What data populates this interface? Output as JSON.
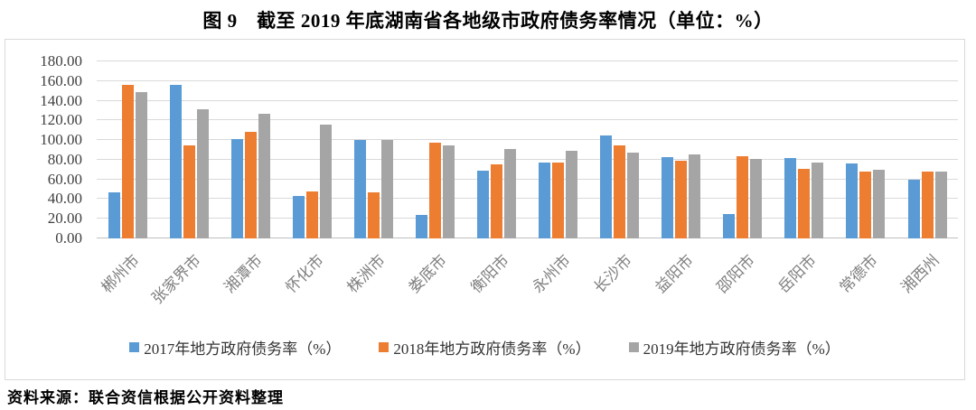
{
  "header": {
    "title": "图 9　截至 2019 年底湖南省各地级市政府债务率情况（单位：%）"
  },
  "footer": {
    "source": "资料来源：联合资信根据公开资料整理"
  },
  "colors": {
    "series_2017": "#5B9BD5",
    "series_2018": "#ED7D31",
    "series_2019": "#A5A5A5",
    "gridline": "#D9D9D9",
    "axis_line": "#BFBFBF",
    "chart_border": "#D9D9D9",
    "x_label": "#7F7F7F",
    "y_label": "#404040"
  },
  "chart_data": {
    "type": "bar",
    "title": "图 9 截至 2019 年底湖南省各地级市政府债务率情况（单位：%）",
    "categories": [
      "郴州市",
      "张家界市",
      "湘潭市",
      "怀化市",
      "株洲市",
      "娄底市",
      "衡阳市",
      "永州市",
      "长沙市",
      "益阳市",
      "邵阳市",
      "岳阳市",
      "常德市",
      "湘西州"
    ],
    "series": [
      {
        "name": "2017年地方政府债务率（%）",
        "color": "#5B9BD5",
        "values": [
          47,
          156,
          101,
          43,
          100,
          24,
          69,
          77,
          105,
          83,
          25,
          82,
          76,
          60
        ]
      },
      {
        "name": "2018年地方政府债务率（%）",
        "color": "#ED7D31",
        "values": [
          156,
          95,
          108,
          48,
          47,
          97,
          75,
          77,
          95,
          79,
          84,
          71,
          68,
          68
        ]
      },
      {
        "name": "2019年地方政府债务率（%）",
        "color": "#A5A5A5",
        "values": [
          149,
          131,
          127,
          116,
          100,
          95,
          91,
          89,
          87,
          85,
          81,
          77,
          70,
          68
        ]
      }
    ],
    "xlabel": "",
    "ylabel": "",
    "ylim": [
      0,
      180
    ],
    "ytick_step": 20,
    "ytick_labels": [
      "180.00",
      "160.00",
      "140.00",
      "120.00",
      "100.00",
      "80.00",
      "60.00",
      "40.00",
      "20.00",
      "0.00"
    ],
    "grid": true,
    "legend_position": "bottom"
  }
}
